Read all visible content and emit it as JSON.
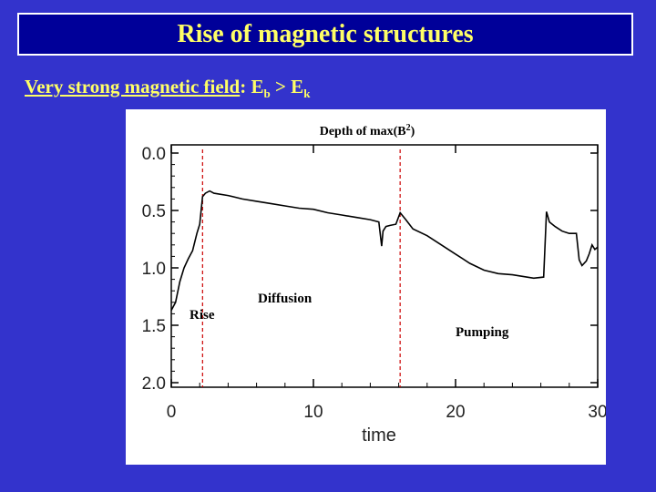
{
  "slide": {
    "title": "Rise of magnetic structures",
    "subtitle": {
      "text_underlined": "Very strong magnetic field",
      "text_rest": ":  E",
      "sub_b": "b",
      "gt": " > E",
      "sub_k": "k"
    }
  },
  "colors": {
    "background": "#3333cc",
    "title_box": "#000099",
    "title_text": "#ffff66",
    "dashed_lines": "#cc0000",
    "plot_line": "#000000"
  },
  "chart_data": {
    "type": "line",
    "title": "Depth of max(B",
    "title_sup": "2",
    "title_close": ")",
    "xlabel": "time",
    "xlim": [
      0,
      30
    ],
    "ylim": [
      2.0,
      0.0
    ],
    "y_inverted": true,
    "x_ticks": [
      "0",
      "10",
      "20",
      "30"
    ],
    "y_ticks": [
      "0.0",
      "0.5",
      "1.0",
      "1.5",
      "2.0"
    ],
    "phase_boundaries": [
      2.2,
      16.1
    ],
    "annotations": [
      "Rise",
      "Diffusion",
      "Pumping"
    ],
    "series": [
      {
        "x": [
          0.0,
          0.3,
          0.6,
          0.9,
          1.2,
          1.5,
          1.8,
          2.0,
          2.2,
          2.4,
          2.7,
          3.0,
          4.0,
          5.0,
          6.0,
          7.0,
          8.0,
          9.0,
          10.0,
          11.0,
          12.0,
          13.0,
          14.0,
          14.6,
          14.8,
          14.9,
          15.1,
          15.4,
          15.8,
          16.1,
          16.5,
          17.0,
          18.0,
          19.0,
          20.0,
          21.0,
          22.0,
          23.0,
          24.0,
          24.5,
          25.0,
          25.5,
          26.2,
          26.4,
          26.6,
          27.0,
          27.5,
          28.0,
          28.5,
          28.7,
          28.9,
          29.2,
          29.4,
          29.6,
          29.8,
          30.0
        ],
        "y": [
          1.37,
          1.3,
          1.12,
          1.0,
          0.92,
          0.85,
          0.7,
          0.62,
          0.38,
          0.35,
          0.33,
          0.35,
          0.37,
          0.4,
          0.42,
          0.44,
          0.46,
          0.48,
          0.49,
          0.52,
          0.54,
          0.56,
          0.58,
          0.6,
          0.81,
          0.68,
          0.64,
          0.63,
          0.62,
          0.52,
          0.58,
          0.66,
          0.72,
          0.8,
          0.88,
          0.96,
          1.02,
          1.05,
          1.06,
          1.07,
          1.08,
          1.09,
          1.08,
          0.51,
          0.6,
          0.64,
          0.68,
          0.7,
          0.7,
          0.93,
          0.98,
          0.94,
          0.88,
          0.8,
          0.84,
          0.82
        ]
      }
    ]
  }
}
